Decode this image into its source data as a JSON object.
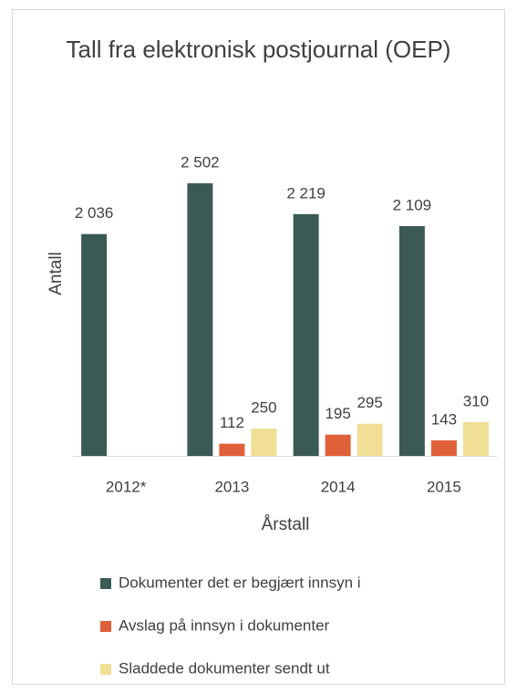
{
  "chart_data": {
    "type": "bar",
    "title": "Tall fra elektronisk postjournal (OEP)",
    "x_label": "Årstall",
    "y_label": "Antall",
    "categories": [
      "2012*",
      "2013",
      "2014",
      "2015"
    ],
    "series": [
      {
        "name": "Dokumenter det er begjært innsyn i",
        "color": "#3b5a55",
        "values": [
          2036,
          2502,
          2219,
          2109
        ],
        "value_labels": [
          "2 036",
          "2 502",
          "2 219",
          "2 109"
        ]
      },
      {
        "name": "Avslag på innsyn i dokumenter",
        "color": "#e0603a",
        "values": [
          null,
          112,
          195,
          143
        ]
      },
      {
        "name": "Sladdede dokumenter sendt ut",
        "color": "#f0df94",
        "values": [
          null,
          250,
          295,
          310
        ]
      }
    ],
    "ylim": [
      0,
      3000
    ],
    "grid": false,
    "legend": "bottom"
  }
}
